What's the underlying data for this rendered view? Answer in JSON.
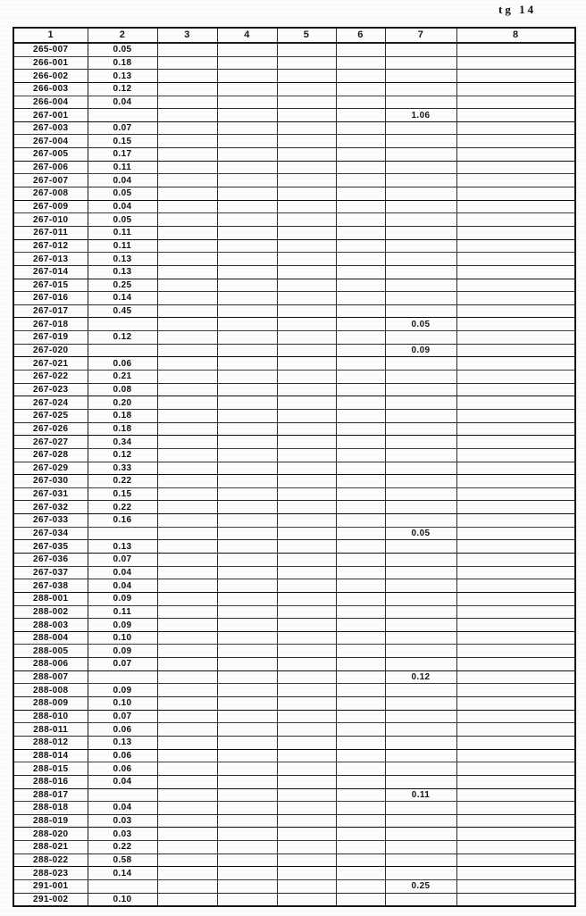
{
  "page": {
    "corner_label": "tg 14"
  },
  "table": {
    "columns": [
      "1",
      "2",
      "3",
      "4",
      "5",
      "6",
      "7",
      "8"
    ],
    "rows": [
      [
        "265-007",
        "0.05",
        "",
        "",
        "",
        "",
        "",
        ""
      ],
      [
        "266-001",
        "0.18",
        "",
        "",
        "",
        "",
        "",
        ""
      ],
      [
        "266-002",
        "0.13",
        "",
        "",
        "",
        "",
        "",
        ""
      ],
      [
        "266-003",
        "0.12",
        "",
        "",
        "",
        "",
        "",
        ""
      ],
      [
        "266-004",
        "0.04",
        "",
        "",
        "",
        "",
        "",
        ""
      ],
      [
        "267-001",
        "",
        "",
        "",
        "",
        "",
        "1.06",
        ""
      ],
      [
        "267-003",
        "0.07",
        "",
        "",
        "",
        "",
        "",
        ""
      ],
      [
        "267-004",
        "0.15",
        "",
        "",
        "",
        "",
        "",
        ""
      ],
      [
        "267-005",
        "0.17",
        "",
        "",
        "",
        "",
        "",
        ""
      ],
      [
        "267-006",
        "0.11",
        "",
        "",
        "",
        "",
        "",
        ""
      ],
      [
        "267-007",
        "0.04",
        "",
        "",
        "",
        "",
        "",
        ""
      ],
      [
        "267-008",
        "0.05",
        "",
        "",
        "",
        "",
        "",
        ""
      ],
      [
        "267-009",
        "0.04",
        "",
        "",
        "",
        "",
        "",
        ""
      ],
      [
        "267-010",
        "0.05",
        "",
        "",
        "",
        "",
        "",
        ""
      ],
      [
        "267-011",
        "0.11",
        "",
        "",
        "",
        "",
        "",
        ""
      ],
      [
        "267-012",
        "0.11",
        "",
        "",
        "",
        "",
        "",
        ""
      ],
      [
        "267-013",
        "0.13",
        "",
        "",
        "",
        "",
        "",
        ""
      ],
      [
        "267-014",
        "0.13",
        "",
        "",
        "",
        "",
        "",
        ""
      ],
      [
        "267-015",
        "0.25",
        "",
        "",
        "",
        "",
        "",
        ""
      ],
      [
        "267-016",
        "0.14",
        "",
        "",
        "",
        "",
        "",
        ""
      ],
      [
        "267-017",
        "0.45",
        "",
        "",
        "",
        "",
        "",
        ""
      ],
      [
        "267-018",
        "",
        "",
        "",
        "",
        "",
        "0.05",
        ""
      ],
      [
        "267-019",
        "0.12",
        "",
        "",
        "",
        "",
        "",
        ""
      ],
      [
        "267-020",
        "",
        "",
        "",
        "",
        "",
        "0.09",
        ""
      ],
      [
        "267-021",
        "0.06",
        "",
        "",
        "",
        "",
        "",
        ""
      ],
      [
        "267-022",
        "0.21",
        "",
        "",
        "",
        "",
        "",
        ""
      ],
      [
        "267-023",
        "0.08",
        "",
        "",
        "",
        "",
        "",
        ""
      ],
      [
        "267-024",
        "0.20",
        "",
        "",
        "",
        "",
        "",
        ""
      ],
      [
        "267-025",
        "0.18",
        "",
        "",
        "",
        "",
        "",
        ""
      ],
      [
        "267-026",
        "0.18",
        "",
        "",
        "",
        "",
        "",
        ""
      ],
      [
        "267-027",
        "0.34",
        "",
        "",
        "",
        "",
        "",
        ""
      ],
      [
        "267-028",
        "0.12",
        "",
        "",
        "",
        "",
        "",
        ""
      ],
      [
        "267-029",
        "0.33",
        "",
        "",
        "",
        "",
        "",
        ""
      ],
      [
        "267-030",
        "0.22",
        "",
        "",
        "",
        "",
        "",
        ""
      ],
      [
        "267-031",
        "0.15",
        "",
        "",
        "",
        "",
        "",
        ""
      ],
      [
        "267-032",
        "0.22",
        "",
        "",
        "",
        "",
        "",
        ""
      ],
      [
        "267-033",
        "0.16",
        "",
        "",
        "",
        "",
        "",
        ""
      ],
      [
        "267-034",
        "",
        "",
        "",
        "",
        "",
        "0.05",
        ""
      ],
      [
        "267-035",
        "0.13",
        "",
        "",
        "",
        "",
        "",
        ""
      ],
      [
        "267-036",
        "0.07",
        "",
        "",
        "",
        "",
        "",
        ""
      ],
      [
        "267-037",
        "0.04",
        "",
        "",
        "",
        "",
        "",
        ""
      ],
      [
        "267-038",
        "0.04",
        "",
        "",
        "",
        "",
        "",
        ""
      ],
      [
        "288-001",
        "0.09",
        "",
        "",
        "",
        "",
        "",
        ""
      ],
      [
        "288-002",
        "0.11",
        "",
        "",
        "",
        "",
        "",
        ""
      ],
      [
        "288-003",
        "0.09",
        "",
        "",
        "",
        "",
        "",
        ""
      ],
      [
        "288-004",
        "0.10",
        "",
        "",
        "",
        "",
        "",
        ""
      ],
      [
        "288-005",
        "0.09",
        "",
        "",
        "",
        "",
        "",
        ""
      ],
      [
        "288-006",
        "0.07",
        "",
        "",
        "",
        "",
        "",
        ""
      ],
      [
        "288-007",
        "",
        "",
        "",
        "",
        "",
        "0.12",
        ""
      ],
      [
        "288-008",
        "0.09",
        "",
        "",
        "",
        "",
        "",
        ""
      ],
      [
        "288-009",
        "0.10",
        "",
        "",
        "",
        "",
        "",
        ""
      ],
      [
        "288-010",
        "0.07",
        "",
        "",
        "",
        "",
        "",
        ""
      ],
      [
        "288-011",
        "0.06",
        "",
        "",
        "",
        "",
        "",
        ""
      ],
      [
        "288-012",
        "0.13",
        "",
        "",
        "",
        "",
        "",
        ""
      ],
      [
        "288-014",
        "0.06",
        "",
        "",
        "",
        "",
        "",
        ""
      ],
      [
        "288-015",
        "0.06",
        "",
        "",
        "",
        "",
        "",
        ""
      ],
      [
        "288-016",
        "0.04",
        "",
        "",
        "",
        "",
        "",
        ""
      ],
      [
        "288-017",
        "",
        "",
        "",
        "",
        "",
        "0.11",
        ""
      ],
      [
        "288-018",
        "0.04",
        "",
        "",
        "",
        "",
        "",
        ""
      ],
      [
        "288-019",
        "0.03",
        "",
        "",
        "",
        "",
        "",
        ""
      ],
      [
        "288-020",
        "0.03",
        "",
        "",
        "",
        "",
        "",
        ""
      ],
      [
        "288-021",
        "0.22",
        "",
        "",
        "",
        "",
        "",
        ""
      ],
      [
        "288-022",
        "0.58",
        "",
        "",
        "",
        "",
        "",
        ""
      ],
      [
        "288-023",
        "0.14",
        "",
        "",
        "",
        "",
        "",
        ""
      ],
      [
        "291-001",
        "",
        "",
        "",
        "",
        "",
        "0.25",
        ""
      ],
      [
        "291-002",
        "0.10",
        "",
        "",
        "",
        "",
        "",
        ""
      ]
    ]
  }
}
